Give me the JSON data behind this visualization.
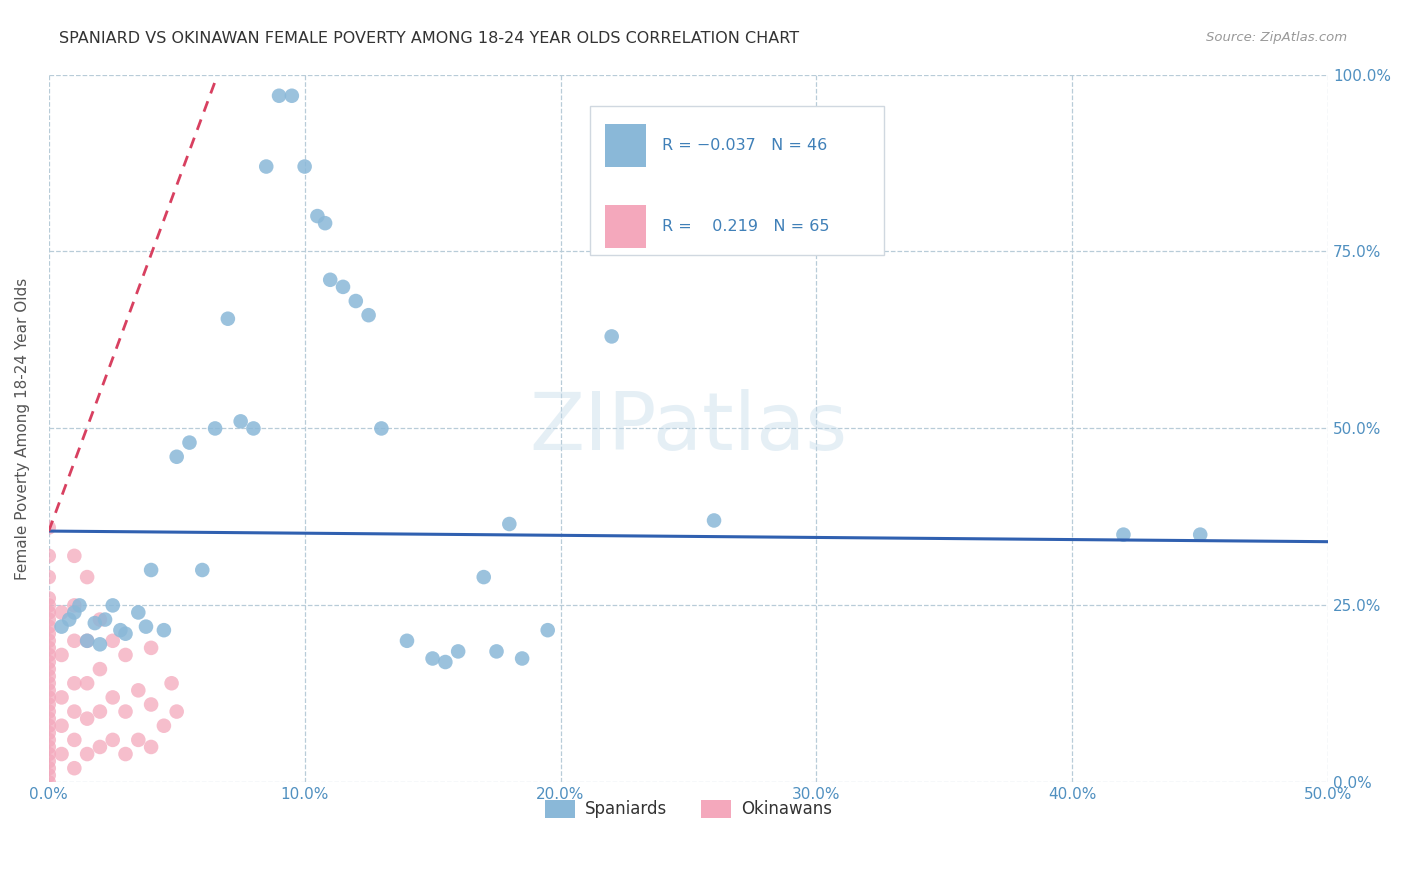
{
  "title": "SPANIARD VS OKINAWAN FEMALE POVERTY AMONG 18-24 YEAR OLDS CORRELATION CHART",
  "source": "Source: ZipAtlas.com",
  "ylabel_label": "Female Poverty Among 18-24 Year Olds",
  "xlim": [
    0,
    0.5
  ],
  "ylim": [
    0,
    1.0
  ],
  "watermark": "ZIPatlas",
  "spaniards_color": "#8ab8d8",
  "okinawans_color": "#f4a8bc",
  "spaniards_line_color": "#3060b0",
  "okinawans_line_color": "#d84060",
  "spaniards_N": 46,
  "okinawans_N": 65,
  "spaniards_R": -0.037,
  "okinawans_R": 0.219,
  "sp_x": [
    0.005,
    0.008,
    0.01,
    0.012,
    0.015,
    0.018,
    0.02,
    0.022,
    0.025,
    0.028,
    0.03,
    0.035,
    0.038,
    0.04,
    0.045,
    0.05,
    0.055,
    0.06,
    0.065,
    0.07,
    0.075,
    0.08,
    0.085,
    0.09,
    0.095,
    0.1,
    0.105,
    0.108,
    0.11,
    0.115,
    0.12,
    0.125,
    0.13,
    0.14,
    0.15,
    0.155,
    0.16,
    0.17,
    0.175,
    0.18,
    0.185,
    0.195,
    0.22,
    0.26,
    0.42,
    0.45
  ],
  "sp_y": [
    0.22,
    0.23,
    0.24,
    0.25,
    0.2,
    0.225,
    0.195,
    0.23,
    0.25,
    0.215,
    0.21,
    0.24,
    0.22,
    0.3,
    0.215,
    0.46,
    0.48,
    0.3,
    0.5,
    0.655,
    0.51,
    0.5,
    0.87,
    0.97,
    0.97,
    0.87,
    0.8,
    0.79,
    0.71,
    0.7,
    0.68,
    0.66,
    0.5,
    0.2,
    0.175,
    0.17,
    0.185,
    0.29,
    0.185,
    0.365,
    0.175,
    0.215,
    0.63,
    0.37,
    0.35,
    0.35
  ],
  "ok_x": [
    0.0,
    0.0,
    0.0,
    0.0,
    0.0,
    0.0,
    0.0,
    0.0,
    0.0,
    0.0,
    0.0,
    0.0,
    0.0,
    0.0,
    0.0,
    0.0,
    0.0,
    0.0,
    0.0,
    0.0,
    0.0,
    0.0,
    0.0,
    0.0,
    0.0,
    0.0,
    0.0,
    0.0,
    0.0,
    0.0,
    0.005,
    0.005,
    0.005,
    0.005,
    0.005,
    0.01,
    0.01,
    0.01,
    0.01,
    0.01,
    0.01,
    0.01,
    0.015,
    0.015,
    0.015,
    0.015,
    0.015,
    0.02,
    0.02,
    0.02,
    0.02,
    0.025,
    0.025,
    0.025,
    0.03,
    0.03,
    0.03,
    0.035,
    0.035,
    0.04,
    0.04,
    0.04,
    0.045,
    0.048,
    0.05
  ],
  "ok_y": [
    0.0,
    0.01,
    0.02,
    0.03,
    0.04,
    0.05,
    0.06,
    0.07,
    0.08,
    0.09,
    0.1,
    0.11,
    0.12,
    0.13,
    0.14,
    0.15,
    0.16,
    0.17,
    0.18,
    0.19,
    0.2,
    0.21,
    0.22,
    0.23,
    0.24,
    0.25,
    0.26,
    0.29,
    0.32,
    0.36,
    0.04,
    0.08,
    0.12,
    0.18,
    0.24,
    0.02,
    0.06,
    0.1,
    0.14,
    0.2,
    0.25,
    0.32,
    0.04,
    0.09,
    0.14,
    0.2,
    0.29,
    0.05,
    0.1,
    0.16,
    0.23,
    0.06,
    0.12,
    0.2,
    0.04,
    0.1,
    0.18,
    0.06,
    0.13,
    0.05,
    0.11,
    0.19,
    0.08,
    0.14,
    0.1
  ],
  "sp_line_x0": 0.0,
  "sp_line_x1": 0.5,
  "sp_line_y0": 0.355,
  "sp_line_y1": 0.34,
  "ok_line_x0": 0.0,
  "ok_line_x1": 0.065,
  "ok_line_y0": 0.355,
  "ok_line_y1": 0.99
}
